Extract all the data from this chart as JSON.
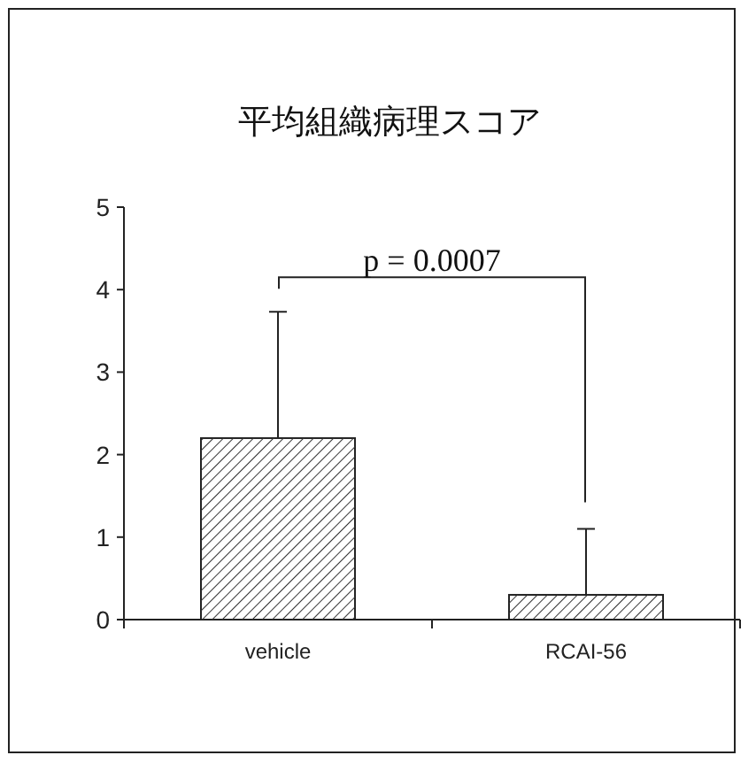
{
  "chart_data": {
    "type": "bar",
    "title": "平均組織病理スコア",
    "categories": [
      "vehicle",
      "RCAI-56"
    ],
    "values": [
      2.2,
      0.3
    ],
    "errors": [
      [
        2.2,
        3.73
      ],
      [
        0.3,
        1.1
      ]
    ],
    "color": "#ffffff",
    "ylim": [
      0,
      5
    ],
    "yticks": [
      0,
      1,
      2,
      3,
      4,
      5
    ],
    "annotations": [
      "p = 0.0007"
    ],
    "grid": false
  }
}
